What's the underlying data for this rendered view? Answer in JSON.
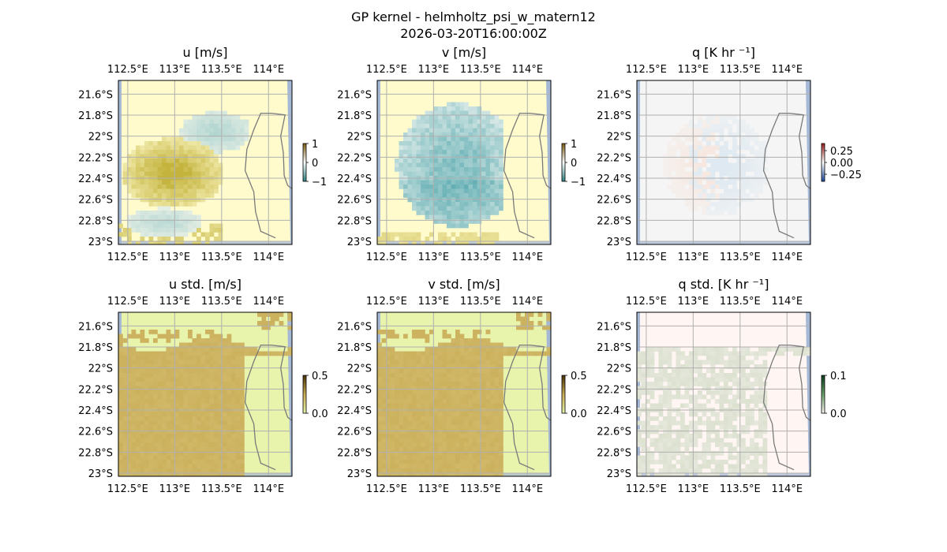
{
  "figure": {
    "title_line1": "GP kernel - helmholtz_psi_w_matern12",
    "title_line2": "2026-03-20T16:00:00Z"
  },
  "map_axes": {
    "xticks": [
      "112.5°E",
      "113°E",
      "113.5°E",
      "114°E"
    ],
    "yticks": [
      "21.6°S",
      "21.8°S",
      "22°S",
      "22.2°S",
      "22.4°S",
      "22.6°S",
      "22.8°S",
      "23°S"
    ],
    "lon_range": [
      112.4,
      114.25
    ],
    "lat_range": [
      -21.47,
      -23.03
    ]
  },
  "chart_data": [
    {
      "type": "heatmap",
      "title": "u [m/s]",
      "cmap": "diverging brown-white-teal",
      "colorbar_ticks": [
        "1",
        "0",
        "−1"
      ],
      "vlim": [
        -1,
        1
      ],
      "grid": true
    },
    {
      "type": "heatmap",
      "title": "v [m/s]",
      "cmap": "diverging brown-white-teal",
      "colorbar_ticks": [
        "1",
        "0",
        "−1"
      ],
      "vlim": [
        -1,
        1
      ],
      "grid": true
    },
    {
      "type": "heatmap",
      "title": "q [K hr ⁻¹]",
      "cmap": "diverging red-white-blue",
      "colorbar_ticks": [
        "0.25",
        "0.00",
        "−0.25"
      ],
      "vlim": [
        -0.4,
        0.4
      ],
      "grid": true
    },
    {
      "type": "heatmap",
      "title": "u std. [m/s]",
      "cmap": "sequential",
      "colorbar_ticks": [
        "0.5",
        "0.0"
      ],
      "vlim": [
        0,
        0.5
      ],
      "grid": true
    },
    {
      "type": "heatmap",
      "title": "v std. [m/s]",
      "cmap": "sequential",
      "colorbar_ticks": [
        "0.5",
        "0.0"
      ],
      "vlim": [
        0,
        0.5
      ],
      "grid": true
    },
    {
      "type": "heatmap",
      "title": "q std. [K hr ⁻¹]",
      "cmap": "sequential",
      "colorbar_ticks": [
        "0.1",
        "0.0"
      ],
      "vlim": [
        0,
        0.1
      ],
      "grid": true
    }
  ],
  "colors": {
    "ocean": "#a5b8d6",
    "land_uv": "#fffbcc",
    "land_q": "#f5f5f5",
    "land_std_uv": "#e8f3ab",
    "land_std_q": "#fff5f2",
    "field_brown": "#c4b43e",
    "field_teal": "#5aaab0",
    "field_std": "#c8ac55",
    "coast": "#7a7a7a",
    "grid": "#b0b0b0"
  }
}
